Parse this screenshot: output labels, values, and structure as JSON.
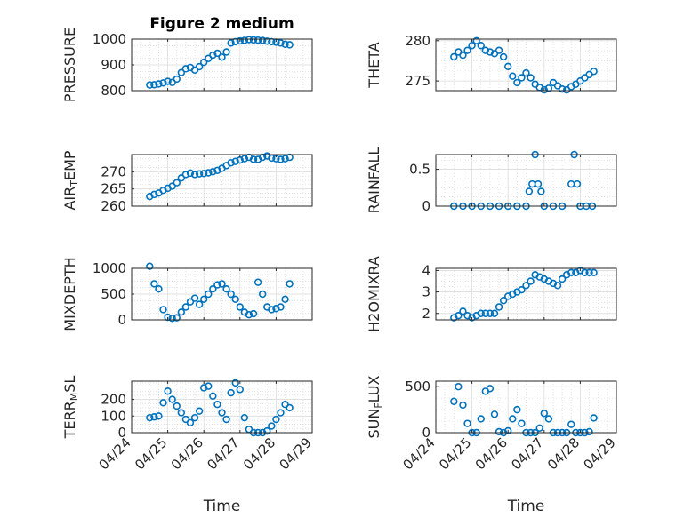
{
  "chart_data": [
    {
      "type": "scatter",
      "title": "Figure 2 medium",
      "ylabel": "PRESSURE",
      "ylim": [
        800,
        1000
      ],
      "yticks": [
        800,
        900,
        1000
      ],
      "ytick_labels": [
        "800",
        "900",
        "1000"
      ],
      "xlabel": "",
      "xlim": [
        "04/24",
        "04/29"
      ],
      "xticks": [
        "04/24",
        "04/25",
        "04/26",
        "04/27",
        "04/28",
        "04/29"
      ],
      "show_xtick_labels": false,
      "grid": true,
      "minor_grid": true,
      "color": "#0072BD",
      "marker": "open-circle",
      "x": [
        "04/24 12:00",
        "04/24 15:00",
        "04/24 18:00",
        "04/24 21:00",
        "04/25 00:00",
        "04/25 03:00",
        "04/25 06:00",
        "04/25 09:00",
        "04/25 12:00",
        "04/25 15:00",
        "04/25 18:00",
        "04/25 21:00",
        "04/26 00:00",
        "04/26 03:00",
        "04/26 06:00",
        "04/26 09:00",
        "04/26 12:00",
        "04/26 15:00",
        "04/26 18:00",
        "04/26 21:00",
        "04/27 00:00",
        "04/27 03:00",
        "04/27 06:00",
        "04/27 09:00",
        "04/27 12:00",
        "04/27 15:00",
        "04/27 18:00",
        "04/27 21:00",
        "04/28 00:00",
        "04/28 03:00",
        "04/28 06:00",
        "04/28 09:00"
      ],
      "y": [
        822,
        823,
        826,
        830,
        836,
        832,
        845,
        870,
        885,
        890,
        880,
        893,
        910,
        925,
        938,
        945,
        930,
        950,
        985,
        990,
        993,
        995,
        998,
        997,
        996,
        995,
        992,
        990,
        988,
        985,
        980,
        978
      ]
    },
    {
      "type": "scatter",
      "title": "",
      "ylabel": "THETA",
      "ylim": [
        273.8,
        280.2
      ],
      "yticks": [
        275,
        280
      ],
      "ytick_labels": [
        "275",
        "280"
      ],
      "xlabel": "",
      "xlim": [
        "04/24",
        "04/29"
      ],
      "xticks": [
        "04/24",
        "04/25",
        "04/26",
        "04/27",
        "04/28",
        "04/29"
      ],
      "show_xtick_labels": false,
      "grid": true,
      "minor_grid": true,
      "color": "#0072BD",
      "marker": "open-circle",
      "x": [
        "04/24 12:00",
        "04/24 15:00",
        "04/24 18:00",
        "04/24 21:00",
        "04/25 00:00",
        "04/25 03:00",
        "04/25 06:00",
        "04/25 09:00",
        "04/25 12:00",
        "04/25 15:00",
        "04/25 18:00",
        "04/25 21:00",
        "04/26 00:00",
        "04/26 03:00",
        "04/26 06:00",
        "04/26 09:00",
        "04/26 12:00",
        "04/26 15:00",
        "04/26 18:00",
        "04/26 21:00",
        "04/27 00:00",
        "04/27 03:00",
        "04/27 06:00",
        "04/27 09:00",
        "04/27 12:00",
        "04/27 15:00",
        "04/27 18:00",
        "04/27 21:00",
        "04/28 00:00",
        "04/28 03:00",
        "04/28 06:00",
        "04/28 09:00"
      ],
      "y": [
        278.0,
        278.6,
        278.2,
        278.8,
        279.4,
        280.0,
        279.4,
        278.8,
        278.6,
        278.4,
        278.8,
        278.0,
        276.8,
        275.6,
        274.8,
        275.4,
        276.0,
        275.4,
        274.6,
        274.2,
        273.9,
        274.1,
        274.8,
        274.4,
        274.0,
        273.9,
        274.3,
        274.6,
        275.0,
        275.4,
        275.8,
        276.2
      ]
    },
    {
      "type": "scatter",
      "title": "",
      "ylabel": "AIR_TEMP",
      "ylim": [
        260,
        275
      ],
      "yticks": [
        260,
        265,
        270
      ],
      "ytick_labels": [
        "260",
        "265",
        "270"
      ],
      "xlabel": "",
      "xlim": [
        "04/24",
        "04/29"
      ],
      "xticks": [
        "04/24",
        "04/25",
        "04/26",
        "04/27",
        "04/28",
        "04/29"
      ],
      "show_xtick_labels": false,
      "grid": true,
      "minor_grid": true,
      "color": "#0072BD",
      "marker": "open-circle",
      "x": [
        "04/24 12:00",
        "04/24 15:00",
        "04/24 18:00",
        "04/24 21:00",
        "04/25 00:00",
        "04/25 03:00",
        "04/25 06:00",
        "04/25 09:00",
        "04/25 12:00",
        "04/25 15:00",
        "04/25 18:00",
        "04/25 21:00",
        "04/26 00:00",
        "04/26 03:00",
        "04/26 06:00",
        "04/26 09:00",
        "04/26 12:00",
        "04/26 15:00",
        "04/26 18:00",
        "04/26 21:00",
        "04/27 00:00",
        "04/27 03:00",
        "04/27 06:00",
        "04/27 09:00",
        "04/27 12:00",
        "04/27 15:00",
        "04/27 18:00",
        "04/27 21:00",
        "04/28 00:00",
        "04/28 03:00",
        "04/28 06:00",
        "04/28 09:00"
      ],
      "y": [
        262.8,
        263.4,
        263.8,
        264.6,
        265.2,
        265.8,
        266.8,
        268.2,
        269.2,
        269.6,
        269.2,
        269.4,
        269.5,
        269.7,
        270.0,
        270.4,
        271.0,
        271.8,
        272.6,
        273.0,
        273.4,
        273.8,
        274.2,
        273.6,
        273.6,
        274.2,
        274.6,
        274.0,
        273.8,
        273.6,
        273.8,
        274.2
      ]
    },
    {
      "type": "scatter",
      "title": "",
      "ylabel": "RAINFALL",
      "ylim": [
        0,
        0.7
      ],
      "yticks": [
        0,
        0.5
      ],
      "ytick_labels": [
        "0",
        "0.5"
      ],
      "xlabel": "",
      "xlim": [
        "04/24",
        "04/29"
      ],
      "xticks": [
        "04/24",
        "04/25",
        "04/26",
        "04/27",
        "04/28",
        "04/29"
      ],
      "show_xtick_labels": false,
      "grid": true,
      "minor_grid": true,
      "color": "#0072BD",
      "marker": "open-circle",
      "x": [
        "04/24 12:00",
        "04/24 18:00",
        "04/25 00:00",
        "04/25 06:00",
        "04/25 12:00",
        "04/25 18:00",
        "04/26 00:00",
        "04/26 06:00",
        "04/26 12:00",
        "04/26 14:00",
        "04/26 16:00",
        "04/26 18:00",
        "04/26 20:00",
        "04/26 22:00",
        "04/27 00:00",
        "04/27 06:00",
        "04/27 12:00",
        "04/27 18:00",
        "04/27 20:00",
        "04/27 22:00",
        "04/28 00:00",
        "04/28 04:00",
        "04/28 08:00"
      ],
      "y": [
        0,
        0,
        0,
        0,
        0,
        0,
        0,
        0,
        0,
        0.2,
        0.3,
        0.7,
        0.3,
        0.2,
        0,
        0,
        0,
        0.3,
        0.7,
        0.3,
        0,
        0,
        0
      ]
    },
    {
      "type": "scatter",
      "title": "",
      "ylabel": "MIXDEPTH",
      "ylim": [
        0,
        1000
      ],
      "yticks": [
        0,
        500,
        1000
      ],
      "ytick_labels": [
        "0",
        "500",
        "1000"
      ],
      "xlabel": "",
      "xlim": [
        "04/24",
        "04/29"
      ],
      "xticks": [
        "04/24",
        "04/25",
        "04/26",
        "04/27",
        "04/28",
        "04/29"
      ],
      "show_xtick_labels": false,
      "grid": true,
      "minor_grid": true,
      "color": "#0072BD",
      "marker": "open-circle",
      "x": [
        "04/24 12:00",
        "04/24 15:00",
        "04/24 18:00",
        "04/24 21:00",
        "04/25 00:00",
        "04/25 03:00",
        "04/25 06:00",
        "04/25 09:00",
        "04/25 12:00",
        "04/25 15:00",
        "04/25 18:00",
        "04/25 21:00",
        "04/26 00:00",
        "04/26 03:00",
        "04/26 06:00",
        "04/26 09:00",
        "04/26 12:00",
        "04/26 15:00",
        "04/26 18:00",
        "04/26 21:00",
        "04/27 00:00",
        "04/27 03:00",
        "04/27 06:00",
        "04/27 09:00",
        "04/27 12:00",
        "04/27 15:00",
        "04/27 18:00",
        "04/27 21:00",
        "04/28 00:00",
        "04/28 03:00",
        "04/28 06:00",
        "04/28 09:00"
      ],
      "y": [
        1040,
        700,
        600,
        200,
        50,
        30,
        40,
        150,
        250,
        350,
        420,
        300,
        400,
        500,
        600,
        680,
        700,
        600,
        500,
        400,
        250,
        150,
        100,
        120,
        730,
        500,
        250,
        200,
        220,
        250,
        400,
        700
      ]
    },
    {
      "type": "scatter",
      "title": "",
      "ylabel": "H2OMIXRA",
      "ylim": [
        1.7,
        4.1
      ],
      "yticks": [
        2,
        3,
        4
      ],
      "ytick_labels": [
        "2",
        "3",
        "4"
      ],
      "xlabel": "",
      "xlim": [
        "04/24",
        "04/29"
      ],
      "xticks": [
        "04/24",
        "04/25",
        "04/26",
        "04/27",
        "04/28",
        "04/29"
      ],
      "show_xtick_labels": false,
      "grid": true,
      "minor_grid": true,
      "color": "#0072BD",
      "marker": "open-circle",
      "x": [
        "04/24 12:00",
        "04/24 15:00",
        "04/24 18:00",
        "04/24 21:00",
        "04/25 00:00",
        "04/25 03:00",
        "04/25 06:00",
        "04/25 09:00",
        "04/25 12:00",
        "04/25 15:00",
        "04/25 18:00",
        "04/25 21:00",
        "04/26 00:00",
        "04/26 03:00",
        "04/26 06:00",
        "04/26 09:00",
        "04/26 12:00",
        "04/26 15:00",
        "04/26 18:00",
        "04/26 21:00",
        "04/27 00:00",
        "04/27 03:00",
        "04/27 06:00",
        "04/27 09:00",
        "04/27 12:00",
        "04/27 15:00",
        "04/27 18:00",
        "04/27 21:00",
        "04/28 00:00",
        "04/28 03:00",
        "04/28 06:00",
        "04/28 09:00"
      ],
      "y": [
        1.8,
        1.9,
        2.1,
        1.9,
        1.8,
        1.9,
        2.0,
        2.0,
        2.0,
        2.0,
        2.3,
        2.6,
        2.8,
        2.9,
        3.0,
        3.1,
        3.3,
        3.5,
        3.8,
        3.7,
        3.6,
        3.5,
        3.4,
        3.3,
        3.6,
        3.8,
        3.9,
        3.9,
        4.0,
        3.9,
        3.9,
        3.9
      ]
    },
    {
      "type": "scatter",
      "title": "",
      "ylabel": "TERR_MSL",
      "ylim": [
        0,
        310
      ],
      "yticks": [
        0,
        100,
        200
      ],
      "ytick_labels": [
        "0",
        "100",
        "200"
      ],
      "xlabel": "Time",
      "xlim": [
        "04/24",
        "04/29"
      ],
      "xticks": [
        "04/24",
        "04/25",
        "04/26",
        "04/27",
        "04/28",
        "04/29"
      ],
      "show_xtick_labels": true,
      "grid": true,
      "minor_grid": true,
      "color": "#0072BD",
      "marker": "open-circle",
      "x": [
        "04/24 12:00",
        "04/24 15:00",
        "04/24 18:00",
        "04/24 21:00",
        "04/25 00:00",
        "04/25 03:00",
        "04/25 06:00",
        "04/25 09:00",
        "04/25 12:00",
        "04/25 15:00",
        "04/25 18:00",
        "04/25 21:00",
        "04/26 00:00",
        "04/26 03:00",
        "04/26 06:00",
        "04/26 09:00",
        "04/26 12:00",
        "04/26 15:00",
        "04/26 18:00",
        "04/26 21:00",
        "04/27 00:00",
        "04/27 03:00",
        "04/27 06:00",
        "04/27 09:00",
        "04/27 12:00",
        "04/27 15:00",
        "04/27 18:00",
        "04/27 21:00",
        "04/28 00:00",
        "04/28 03:00",
        "04/28 06:00",
        "04/28 09:00"
      ],
      "y": [
        90,
        95,
        100,
        180,
        250,
        200,
        160,
        120,
        80,
        60,
        90,
        130,
        270,
        280,
        220,
        170,
        120,
        80,
        240,
        300,
        260,
        90,
        20,
        0,
        0,
        0,
        10,
        40,
        80,
        120,
        170,
        150
      ]
    },
    {
      "type": "scatter",
      "title": "",
      "ylabel": "SUN_FLUX",
      "ylim": [
        0,
        560
      ],
      "yticks": [
        0,
        500
      ],
      "ytick_labels": [
        "0",
        "500"
      ],
      "xlabel": "Time",
      "xlim": [
        "04/24",
        "04/29"
      ],
      "xticks": [
        "04/24",
        "04/25",
        "04/26",
        "04/27",
        "04/28",
        "04/29"
      ],
      "show_xtick_labels": true,
      "grid": true,
      "minor_grid": true,
      "color": "#0072BD",
      "marker": "open-circle",
      "x": [
        "04/24 12:00",
        "04/24 15:00",
        "04/24 18:00",
        "04/24 21:00",
        "04/25 00:00",
        "04/25 03:00",
        "04/25 06:00",
        "04/25 09:00",
        "04/25 12:00",
        "04/25 15:00",
        "04/25 18:00",
        "04/25 21:00",
        "04/26 00:00",
        "04/26 03:00",
        "04/26 06:00",
        "04/26 09:00",
        "04/26 12:00",
        "04/26 15:00",
        "04/26 18:00",
        "04/26 21:00",
        "04/27 00:00",
        "04/27 03:00",
        "04/27 06:00",
        "04/27 09:00",
        "04/27 12:00",
        "04/27 15:00",
        "04/27 18:00",
        "04/27 21:00",
        "04/28 00:00",
        "04/28 03:00",
        "04/28 06:00",
        "04/28 09:00"
      ],
      "y": [
        340,
        500,
        300,
        100,
        0,
        0,
        150,
        450,
        480,
        200,
        10,
        0,
        20,
        150,
        250,
        100,
        0,
        0,
        0,
        50,
        210,
        150,
        0,
        0,
        0,
        0,
        90,
        0,
        0,
        0,
        10,
        160
      ]
    }
  ]
}
